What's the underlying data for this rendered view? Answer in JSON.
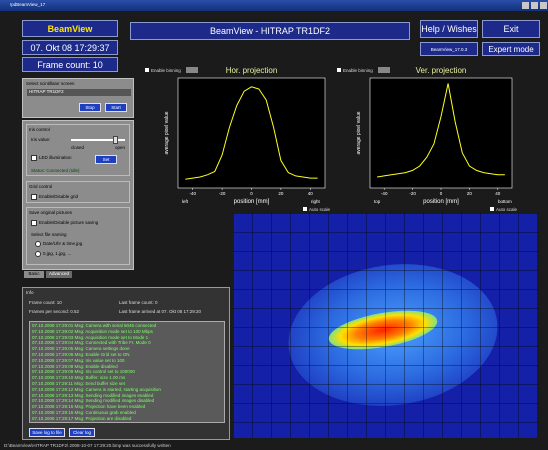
{
  "window_title": "!pdBeamView_17",
  "header": {
    "app_name": "BeamView",
    "date_time": "07. Okt 08 17:29:37",
    "frame_count": "Frame count: 10",
    "title": "BeamView - HITRAP TR1DF2",
    "help": "Help / Wishes",
    "exit": "Exit",
    "version": "BeamView_17.0.3",
    "expert": "Expert mode"
  },
  "scintillator": {
    "label": "Select scintillator screen",
    "selected": "HITRAP TR1DF2",
    "stop": "Stop",
    "start": "Start"
  },
  "iris": {
    "label": "Iris control",
    "iris_value": "Iris value:",
    "closed": "closed",
    "open": "open",
    "led": "LED illumination",
    "set": "Set",
    "status": "Status: Connected (Idle)"
  },
  "grid": {
    "label": "Grid control",
    "enable": "Enable/Disable grid"
  },
  "save": {
    "label": "Save original pictures",
    "enable": "Enable/Disable picture saving",
    "format_label": "Select file naming",
    "opt1": "Date/Uhr & time.jpg",
    "opt2": "0.jpg, 1.jpg, ..."
  },
  "tabs": [
    "Basic",
    "Advanced"
  ],
  "info": {
    "label": "Info",
    "frame_count": "Frame count: 10",
    "fps": "Frames per second: 0.52",
    "last_frame": "Last frame count: 0",
    "last_frame_time": "Last frame arrived at 07. Okt 08 17:29:20",
    "log": [
      "07.10.2008 17:29:01 Msg: Camera with serial 5046 connected",
      "07.10.2008 17:29:02 Msg: Acquisition mode set to 100 Mbps",
      "07.10.2008 17:29:03 Msg: Acquisition mode set to Mode 1",
      "07.10.2008 17:29:04 Msg: Connected with Tribe Fr. Mode 0",
      "07.10.2008 17:29:05 Msg: Camera settings done",
      "07.10.2008 17:29:06 Msg: Enable Grid set to ON",
      "07.10.2008 17:29:07 Msg: Iris value set to 100",
      "07.10.2008 17:29:08 Msg: Enable disabled",
      "07.10.2008 17:29:09 Msg: Iris control set to 100000",
      "07.10.2008 17:29:10 Msg: Buffer: size 1.00 ms",
      "07.10.2008 17:29:11 Msg: Send buffer size set",
      "07.10.2008 17:29:12 Msg: Camera is started, starting acquisition",
      "07.10.2008 17:29:13 Msg: Sending modified images enabled",
      "07.10.2008 17:29:14 Msg: Sending modified images disabled",
      "07.10.2008 17:29:15 Msg: Projection have been enabled",
      "07.10.2008 17:29:16 Msg: Continuous grab enabled",
      "07.10.2008 17:29:17 Msg: Projection are disabled"
    ],
    "save_log": "Save log to file",
    "clear_log": "Clear log"
  },
  "status_bar": "D:\\BeamView\\HITRAP TR1DF2\\ 2008-10-07 17:29:20.bmp was successfully written",
  "projections": [
    {
      "title": "Hor. projection",
      "enable": "Enable binning",
      "ylabel": "average pixel value",
      "xlabel": "position [mm]",
      "start_label": "left",
      "end_label": "right",
      "auto": "Auto scale",
      "xlim": [
        -50,
        50
      ],
      "ylim": [
        0,
        100
      ],
      "xticks": [
        -40,
        -20,
        0,
        20,
        40
      ],
      "x": [
        -45,
        -40,
        -35,
        -30,
        -25,
        -20,
        -15,
        -10,
        -5,
        0,
        5,
        10,
        15,
        20,
        25,
        30,
        35,
        40,
        45
      ],
      "values": [
        8,
        9,
        10,
        12,
        15,
        30,
        55,
        75,
        88,
        92,
        90,
        80,
        55,
        25,
        14,
        11,
        10,
        9,
        9
      ]
    },
    {
      "title": "Ver. projection",
      "enable": "Enable binning",
      "ylabel": "average pixel value",
      "xlabel": "position [mm]",
      "start_label": "top",
      "end_label": "bottom",
      "auto": "Auto scale",
      "xlim": [
        -50,
        50
      ],
      "ylim": [
        0,
        100
      ],
      "xticks": [
        -40,
        -20,
        0,
        20,
        40
      ],
      "x": [
        -45,
        -40,
        -35,
        -30,
        -25,
        -20,
        -15,
        -10,
        -5,
        0,
        5,
        10,
        15,
        20,
        25,
        30,
        35,
        40,
        45
      ],
      "values": [
        10,
        11,
        12,
        13,
        14,
        16,
        20,
        28,
        40,
        65,
        95,
        60,
        32,
        20,
        16,
        14,
        13,
        12,
        12
      ]
    }
  ]
}
